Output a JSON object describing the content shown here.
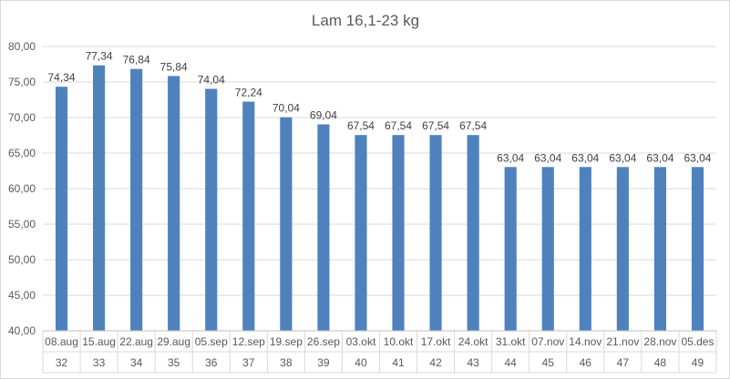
{
  "chart_data": {
    "type": "bar",
    "title": "Lam 16,1-23 kg",
    "categories": [
      "08.aug",
      "15.aug",
      "22.aug",
      "29.aug",
      "05.sep",
      "12.sep",
      "19.sep",
      "26.sep",
      "03.okt",
      "10.okt",
      "17.okt",
      "24.okt",
      "31.okt",
      "07.nov",
      "14.nov",
      "21.nov",
      "28.nov",
      "05.des"
    ],
    "weeks": [
      "32",
      "33",
      "34",
      "35",
      "36",
      "37",
      "38",
      "39",
      "40",
      "41",
      "42",
      "43",
      "44",
      "45",
      "46",
      "47",
      "48",
      "49"
    ],
    "values": [
      74.34,
      77.34,
      76.84,
      75.84,
      74.04,
      72.24,
      70.04,
      69.04,
      67.54,
      67.54,
      67.54,
      67.54,
      63.04,
      63.04,
      63.04,
      63.04,
      63.04,
      63.04
    ],
    "value_labels": [
      "74,34",
      "77,34",
      "76,84",
      "75,84",
      "74,04",
      "72,24",
      "70,04",
      "69,04",
      "67,54",
      "67,54",
      "67,54",
      "67,54",
      "63,04",
      "63,04",
      "63,04",
      "63,04",
      "63,04",
      "63,04"
    ],
    "y_ticks": [
      "40,00",
      "45,00",
      "50,00",
      "55,00",
      "60,00",
      "65,00",
      "70,00",
      "75,00",
      "80,00"
    ],
    "ylim": [
      40,
      80
    ],
    "ytick_step": 5,
    "xlabel": "",
    "ylabel": "",
    "grid": true,
    "legend": "none",
    "bar_color": "#4f81bd"
  }
}
